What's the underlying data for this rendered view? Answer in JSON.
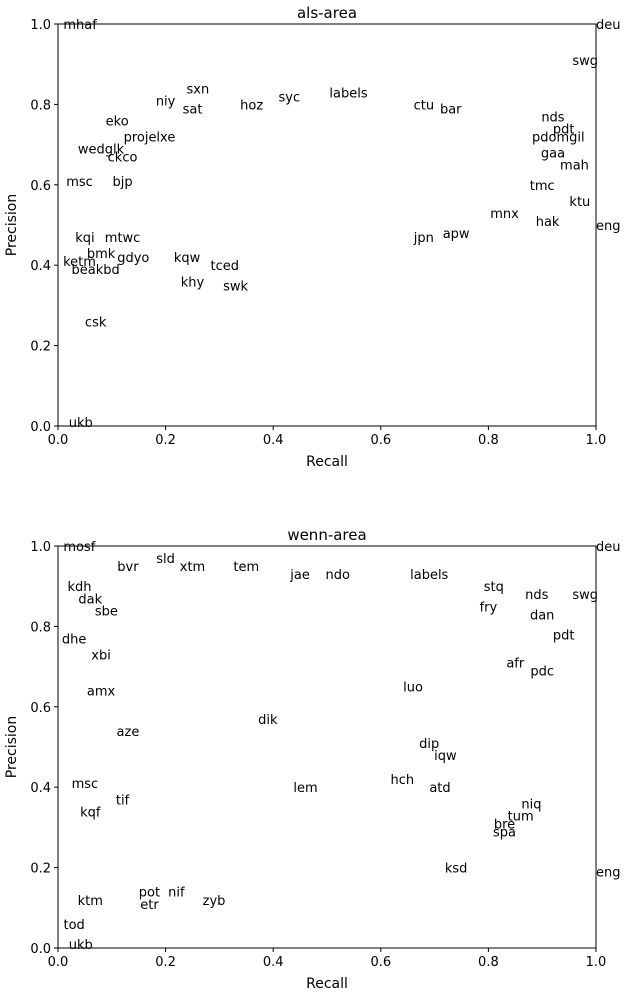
{
  "chart_data": [
    {
      "type": "scatter",
      "title": "als-area",
      "xlabel": "Recall",
      "ylabel": "Precision",
      "xlim": [
        0.0,
        1.0
      ],
      "ylim": [
        0.0,
        1.0
      ],
      "xticks": [
        "0.0",
        "0.2",
        "0.4",
        "0.6",
        "0.8",
        "1.0"
      ],
      "yticks": [
        "0.0",
        "0.2",
        "0.4",
        "0.6",
        "0.8",
        "1.0"
      ],
      "grid": false,
      "points": [
        {
          "label": "deu",
          "x": 1.0,
          "y": 1.0
        },
        {
          "label": "mhaf",
          "x": 0.01,
          "y": 1.0
        },
        {
          "label": "swg",
          "x": 0.98,
          "y": 0.91
        },
        {
          "label": "labels",
          "x": 0.54,
          "y": 0.83
        },
        {
          "label": "sxn",
          "x": 0.26,
          "y": 0.84
        },
        {
          "label": "niy",
          "x": 0.2,
          "y": 0.81
        },
        {
          "label": "sat",
          "x": 0.25,
          "y": 0.79
        },
        {
          "label": "hoz",
          "x": 0.36,
          "y": 0.8
        },
        {
          "label": "syc",
          "x": 0.43,
          "y": 0.82
        },
        {
          "label": "ctu",
          "x": 0.68,
          "y": 0.8
        },
        {
          "label": "bar",
          "x": 0.73,
          "y": 0.79
        },
        {
          "label": "nds",
          "x": 0.92,
          "y": 0.77
        },
        {
          "label": "pdt",
          "x": 0.94,
          "y": 0.74
        },
        {
          "label": "eko",
          "x": 0.11,
          "y": 0.76
        },
        {
          "label": "projelxe",
          "x": 0.17,
          "y": 0.72
        },
        {
          "label": "wedglk",
          "x": 0.08,
          "y": 0.69
        },
        {
          "label": "ckco",
          "x": 0.12,
          "y": 0.67
        },
        {
          "label": "pdomgil",
          "x": 0.93,
          "y": 0.72
        },
        {
          "label": "gaa",
          "x": 0.92,
          "y": 0.68
        },
        {
          "label": "mah",
          "x": 0.96,
          "y": 0.65
        },
        {
          "label": "msc",
          "x": 0.04,
          "y": 0.61
        },
        {
          "label": "bjp",
          "x": 0.12,
          "y": 0.61
        },
        {
          "label": "tmc",
          "x": 0.9,
          "y": 0.6
        },
        {
          "label": "ktu",
          "x": 0.97,
          "y": 0.56
        },
        {
          "label": "eng",
          "x": 1.0,
          "y": 0.5
        },
        {
          "label": "hak",
          "x": 0.91,
          "y": 0.51
        },
        {
          "label": "mnx",
          "x": 0.83,
          "y": 0.53
        },
        {
          "label": "apw",
          "x": 0.74,
          "y": 0.48
        },
        {
          "label": "jpn",
          "x": 0.68,
          "y": 0.47
        },
        {
          "label": "kqi",
          "x": 0.05,
          "y": 0.47
        },
        {
          "label": "mtwc",
          "x": 0.12,
          "y": 0.47
        },
        {
          "label": "bmk",
          "x": 0.08,
          "y": 0.43
        },
        {
          "label": "ketm",
          "x": 0.04,
          "y": 0.41
        },
        {
          "label": "gdyo",
          "x": 0.14,
          "y": 0.42
        },
        {
          "label": "beakbd",
          "x": 0.07,
          "y": 0.39
        },
        {
          "label": "kqw",
          "x": 0.24,
          "y": 0.42
        },
        {
          "label": "tced",
          "x": 0.31,
          "y": 0.4
        },
        {
          "label": "khy",
          "x": 0.25,
          "y": 0.36
        },
        {
          "label": "swk",
          "x": 0.33,
          "y": 0.35
        },
        {
          "label": "csk",
          "x": 0.07,
          "y": 0.26
        },
        {
          "label": "ukb",
          "x": 0.02,
          "y": 0.01
        }
      ]
    },
    {
      "type": "scatter",
      "title": "wenn-area",
      "xlabel": "Recall",
      "ylabel": "Precision",
      "xlim": [
        0.0,
        1.0
      ],
      "ylim": [
        0.0,
        1.0
      ],
      "xticks": [
        "0.0",
        "0.2",
        "0.4",
        "0.6",
        "0.8",
        "1.0"
      ],
      "yticks": [
        "0.0",
        "0.2",
        "0.4",
        "0.6",
        "0.8",
        "1.0"
      ],
      "grid": false,
      "points": [
        {
          "label": "deu",
          "x": 1.0,
          "y": 1.0
        },
        {
          "label": "mosf",
          "x": 0.01,
          "y": 1.0
        },
        {
          "label": "sld",
          "x": 0.2,
          "y": 0.97
        },
        {
          "label": "bvr",
          "x": 0.13,
          "y": 0.95
        },
        {
          "label": "xtm",
          "x": 0.25,
          "y": 0.95
        },
        {
          "label": "tem",
          "x": 0.35,
          "y": 0.95
        },
        {
          "label": "jae",
          "x": 0.45,
          "y": 0.93
        },
        {
          "label": "ndo",
          "x": 0.52,
          "y": 0.93
        },
        {
          "label": "labels",
          "x": 0.69,
          "y": 0.93
        },
        {
          "label": "stq",
          "x": 0.81,
          "y": 0.9
        },
        {
          "label": "kdh",
          "x": 0.04,
          "y": 0.9
        },
        {
          "label": "nds",
          "x": 0.89,
          "y": 0.88
        },
        {
          "label": "swg",
          "x": 0.98,
          "y": 0.88
        },
        {
          "label": "dak",
          "x": 0.06,
          "y": 0.87
        },
        {
          "label": "sbe",
          "x": 0.09,
          "y": 0.84
        },
        {
          "label": "fry",
          "x": 0.8,
          "y": 0.85
        },
        {
          "label": "dan",
          "x": 0.9,
          "y": 0.83
        },
        {
          "label": "pdt",
          "x": 0.94,
          "y": 0.78
        },
        {
          "label": "dhe",
          "x": 0.03,
          "y": 0.77
        },
        {
          "label": "xbi",
          "x": 0.08,
          "y": 0.73
        },
        {
          "label": "afr",
          "x": 0.85,
          "y": 0.71
        },
        {
          "label": "pdc",
          "x": 0.9,
          "y": 0.69
        },
        {
          "label": "amx",
          "x": 0.08,
          "y": 0.64
        },
        {
          "label": "luo",
          "x": 0.66,
          "y": 0.65
        },
        {
          "label": "aze",
          "x": 0.13,
          "y": 0.54
        },
        {
          "label": "dik",
          "x": 0.39,
          "y": 0.57
        },
        {
          "label": "iqw",
          "x": 0.72,
          "y": 0.48
        },
        {
          "label": "dip",
          "x": 0.69,
          "y": 0.51
        },
        {
          "label": "msc",
          "x": 0.05,
          "y": 0.41
        },
        {
          "label": "tif",
          "x": 0.12,
          "y": 0.37
        },
        {
          "label": "lem",
          "x": 0.46,
          "y": 0.4
        },
        {
          "label": "hch",
          "x": 0.64,
          "y": 0.42
        },
        {
          "label": "atd",
          "x": 0.71,
          "y": 0.4
        },
        {
          "label": "niq",
          "x": 0.88,
          "y": 0.36
        },
        {
          "label": "tum",
          "x": 0.86,
          "y": 0.33
        },
        {
          "label": "kqf",
          "x": 0.06,
          "y": 0.34
        },
        {
          "label": "bre",
          "x": 0.83,
          "y": 0.31
        },
        {
          "label": "spa",
          "x": 0.83,
          "y": 0.29
        },
        {
          "label": "eng",
          "x": 1.0,
          "y": 0.19
        },
        {
          "label": "ksd",
          "x": 0.74,
          "y": 0.2
        },
        {
          "label": "pot",
          "x": 0.17,
          "y": 0.14
        },
        {
          "label": "nif",
          "x": 0.22,
          "y": 0.14
        },
        {
          "label": "zyb",
          "x": 0.29,
          "y": 0.12
        },
        {
          "label": "ktm",
          "x": 0.06,
          "y": 0.12
        },
        {
          "label": "etr",
          "x": 0.17,
          "y": 0.11
        },
        {
          "label": "tod",
          "x": 0.03,
          "y": 0.06
        },
        {
          "label": "ukb",
          "x": 0.02,
          "y": 0.01
        }
      ]
    }
  ]
}
